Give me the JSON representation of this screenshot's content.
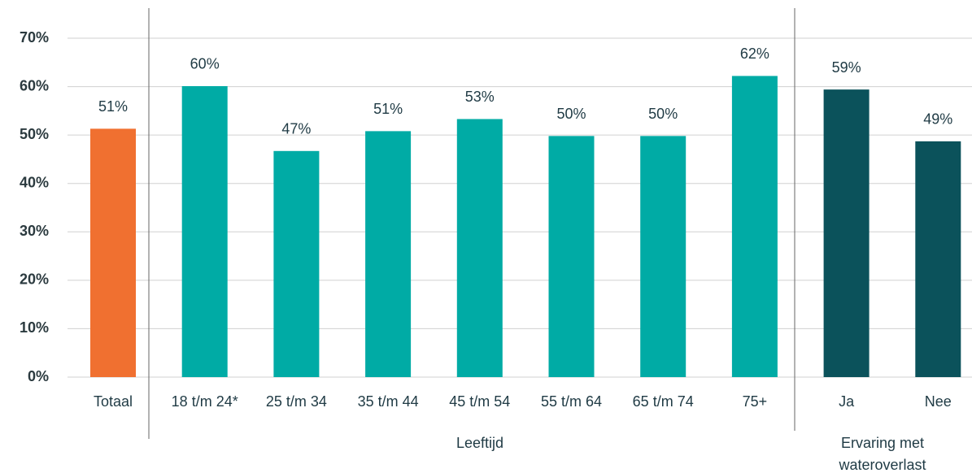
{
  "chart_data": {
    "type": "bar",
    "categories": [
      "Totaal",
      "18 t/m 24*",
      "25 t/m 34",
      "35 t/m 44",
      "45 t/m 54",
      "55 t/m 64",
      "65 t/m 74",
      "75+",
      "Ja",
      "Nee"
    ],
    "values": [
      51.3,
      60.1,
      46.7,
      50.8,
      53.3,
      49.8,
      49.8,
      62.2,
      59.4,
      48.7
    ],
    "value_labels": [
      "51%",
      "60%",
      "47%",
      "51%",
      "53%",
      "50%",
      "50%",
      "62%",
      "59%",
      "49%"
    ],
    "colors": [
      "#f07030",
      "#00aba5",
      "#00aba5",
      "#00aba5",
      "#00aba5",
      "#00aba5",
      "#00aba5",
      "#00aba5",
      "#0b525b",
      "#0b525b"
    ],
    "groups": [
      {
        "label": [
          "Leeftijd"
        ]
      },
      {
        "label": [
          "Ervaring met",
          "wateroverlast"
        ]
      }
    ],
    "ylim": [
      0,
      70
    ],
    "yticks": [
      {
        "value": 0,
        "label": "0%"
      },
      {
        "value": 10,
        "label": "10%"
      },
      {
        "value": 20,
        "label": "20%"
      },
      {
        "value": 30,
        "label": "30%"
      },
      {
        "value": 40,
        "label": "40%"
      },
      {
        "value": 50,
        "label": "50%"
      },
      {
        "value": 60,
        "label": "60%"
      },
      {
        "value": 70,
        "label": "70%"
      }
    ],
    "grid": true
  }
}
